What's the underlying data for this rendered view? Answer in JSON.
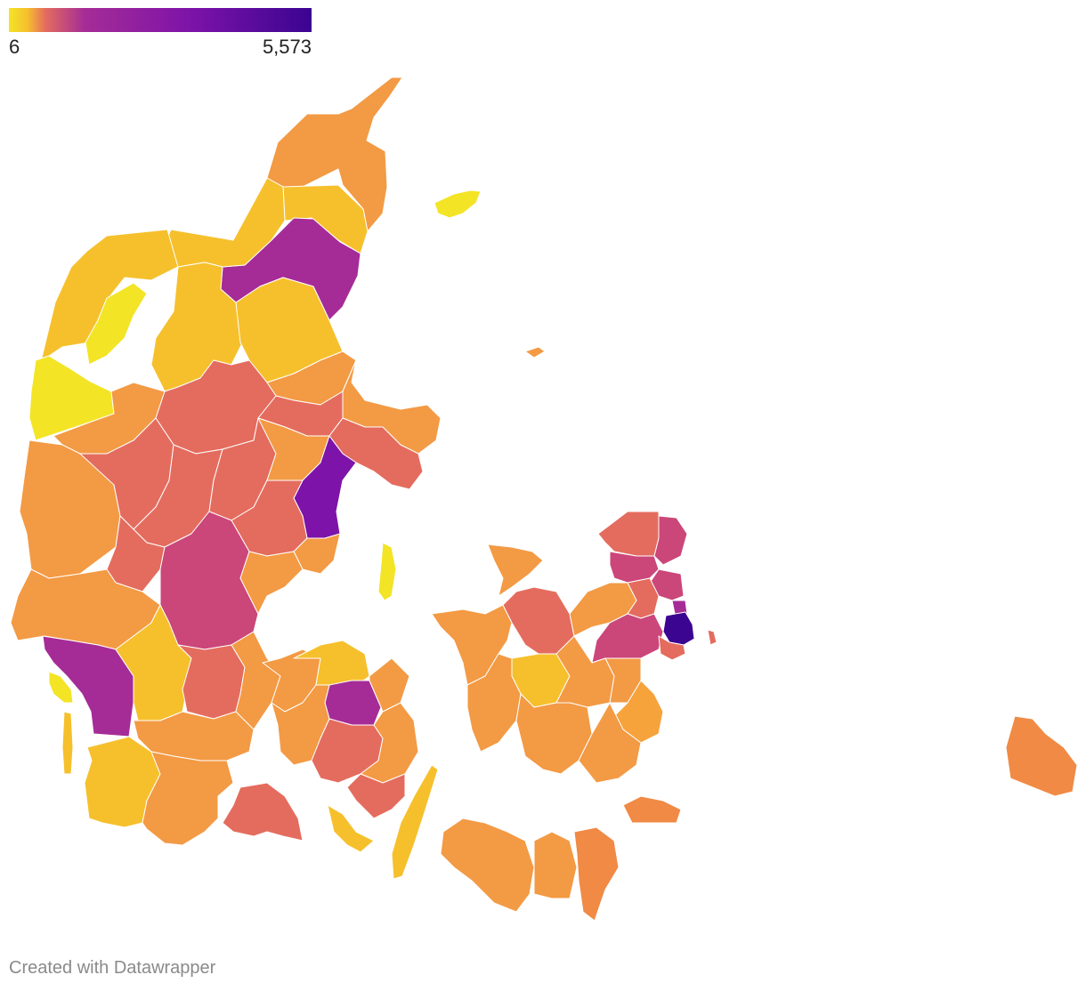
{
  "legend": {
    "min_label": "6",
    "max_label": "5,573",
    "min_value": 6,
    "max_value": 5573,
    "colors": [
      "#f3e426",
      "#f6c02d",
      "#f39a44",
      "#e46c5e",
      "#cb4679",
      "#a52c97",
      "#7d13a8",
      "#4c02a1",
      "#0d0887"
    ]
  },
  "regions": [
    {
      "name": "Skagen",
      "value": 1400
    },
    {
      "name": "Læsø",
      "value": 6
    },
    {
      "name": "Thisted",
      "value": 350
    },
    {
      "name": "Morsø",
      "value": 80
    },
    {
      "name": "Aalborg",
      "value": 3300
    },
    {
      "name": "Aarhus",
      "value": 4300
    },
    {
      "name": "Herning",
      "value": 2700
    },
    {
      "name": "Esbjerg",
      "value": 3100
    },
    {
      "name": "Odense",
      "value": 3500
    },
    {
      "name": "København",
      "value": 5573
    },
    {
      "name": "Bornholm",
      "value": 1300
    },
    {
      "name": "Samsø",
      "value": 60
    },
    {
      "name": "Fanø",
      "value": 40
    },
    {
      "name": "Langeland",
      "value": 500
    }
  ],
  "footer": {
    "credit": "Created with Datawrapper"
  }
}
